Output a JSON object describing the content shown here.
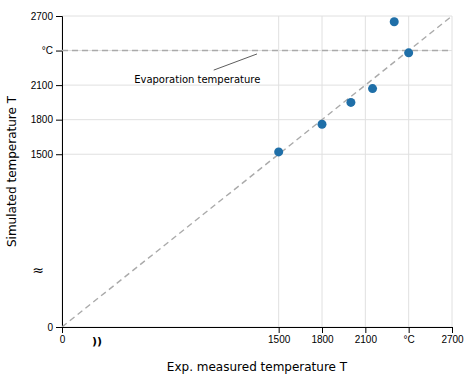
{
  "chart_data": {
    "type": "scatter",
    "xlabel": "Exp. measured temperature T",
    "ylabel": "Simulated temperature T",
    "xlim": [
      0,
      2700
    ],
    "ylim": [
      0,
      2700
    ],
    "xticks": [
      0,
      1500,
      1800,
      2100,
      {
        "value": 2400,
        "label": "°C"
      },
      2700
    ],
    "yticks": [
      0,
      1500,
      1800,
      2100,
      {
        "value": 2400,
        "label": "°C"
      },
      2700
    ],
    "grid": true,
    "series": [
      {
        "type": "scatter",
        "marker": "circle",
        "color": "#1f6fa8",
        "x": [
          1500,
          1800,
          2000,
          2150,
          2300,
          2400
        ],
        "values": [
          1520,
          1760,
          1950,
          2070,
          2650,
          2380
        ]
      },
      {
        "type": "line",
        "line_style": "dashed",
        "color": "#aaaaaa",
        "x": [
          0,
          2700
        ],
        "values": [
          0,
          2700
        ]
      },
      {
        "type": "line",
        "line_style": "dashed",
        "color": "#aaaaaa",
        "x": [
          0,
          2700
        ],
        "values": [
          2400,
          2400
        ]
      }
    ],
    "annotations": [
      {
        "text": "Evaporation temperature"
      },
      {
        "text": "≈",
        "axis": "y"
      },
      {
        "text": "))",
        "axis": "x"
      }
    ]
  }
}
